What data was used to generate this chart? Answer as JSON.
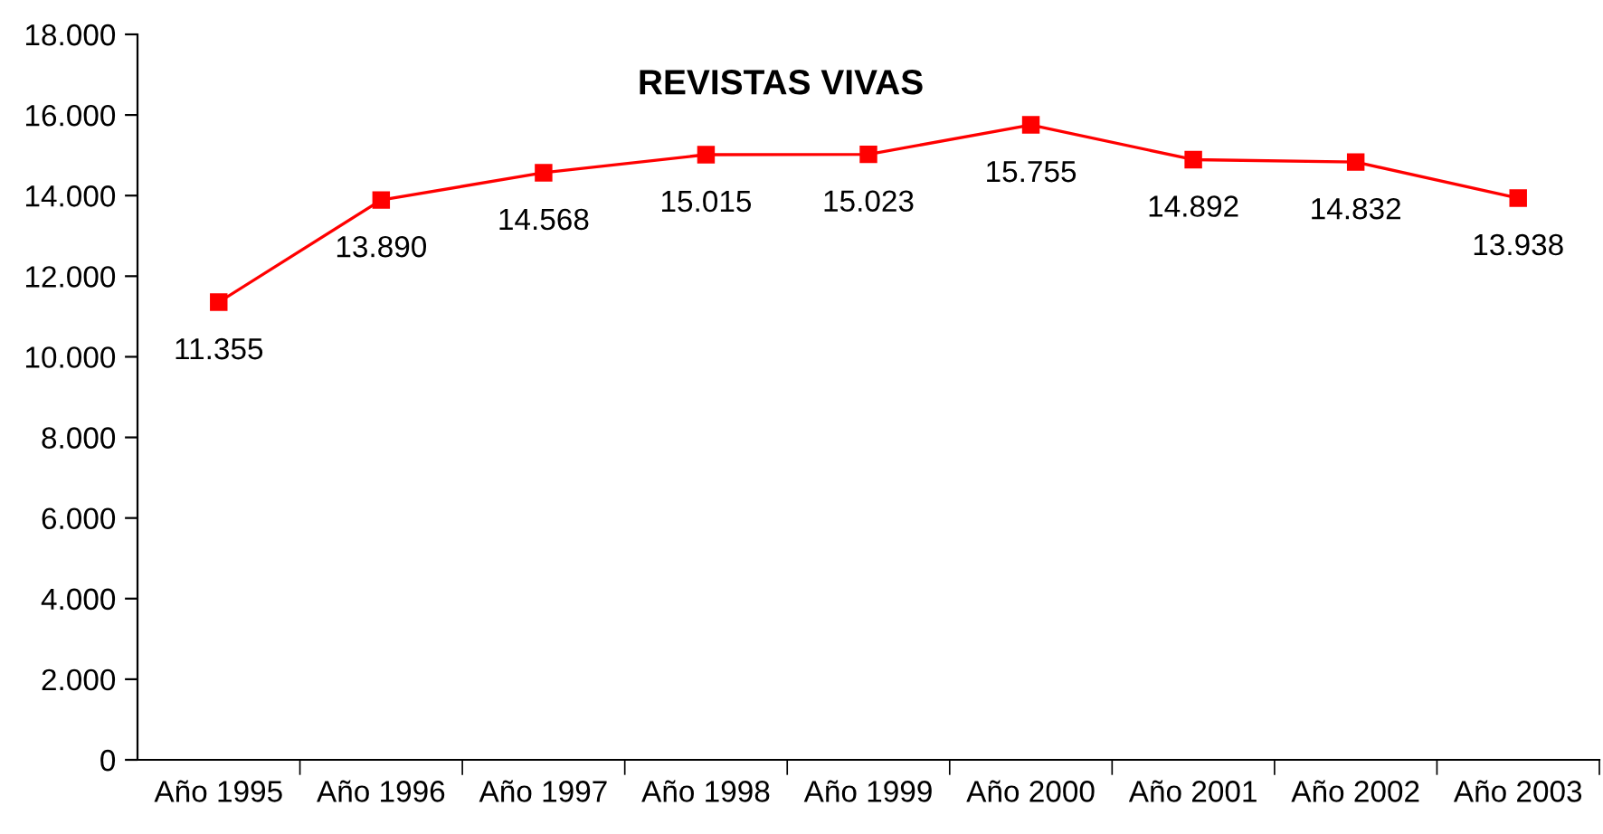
{
  "chart_data": {
    "type": "line",
    "title": "REVISTAS VIVAS",
    "categories": [
      "Año 1995",
      "Año 1996",
      "Año 1997",
      "Año 1998",
      "Año 1999",
      "Año 2000",
      "Año 2001",
      "Año 2002",
      "Año 2003"
    ],
    "series": [
      {
        "color": "#ff0000",
        "values": [
          11355,
          13890,
          14568,
          15015,
          15023,
          15755,
          14892,
          14832,
          13938
        ],
        "value_labels": [
          "11.355",
          "13.890",
          "14.568",
          "15.015",
          "15.023",
          "15.755",
          "14.892",
          "14.832",
          "13.938"
        ]
      }
    ],
    "ylim": [
      0,
      18000
    ],
    "yticks": [
      {
        "value": 0,
        "label": "0"
      },
      {
        "value": 2000,
        "label": "2.000"
      },
      {
        "value": 4000,
        "label": "4.000"
      },
      {
        "value": 6000,
        "label": "6.000"
      },
      {
        "value": 8000,
        "label": "8.000"
      },
      {
        "value": 10000,
        "label": "10.000"
      },
      {
        "value": 12000,
        "label": "12.000"
      },
      {
        "value": 14000,
        "label": "14.000"
      },
      {
        "value": 16000,
        "label": "16.000"
      },
      {
        "value": 18000,
        "label": "18.000"
      }
    ],
    "marker": "square",
    "line_style": "solid",
    "grid": false,
    "legend": false
  }
}
